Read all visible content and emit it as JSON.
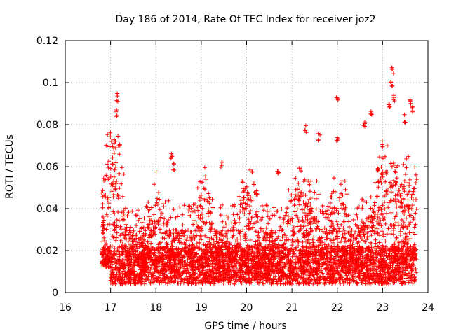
{
  "chart_data": {
    "type": "scatter",
    "title": "Day 186 of 2014, Rate Of TEC Index for receiver joz2",
    "xlabel": "GPS time / hours",
    "ylabel": "ROTI / TECUs",
    "xlim": [
      16,
      24
    ],
    "ylim": [
      0,
      0.12
    ],
    "x_ticks": [
      "16",
      "17",
      "18",
      "19",
      "20",
      "21",
      "22",
      "23",
      "24"
    ],
    "y_ticks": [
      "0",
      "0.02",
      "0.04",
      "0.06",
      "0.08",
      "0.1",
      "0.12"
    ],
    "grid": true,
    "marker": "+",
    "series_color": "#ff0000",
    "data_x_range": [
      16.8,
      23.75
    ],
    "outliers": [
      {
        "x": 17.15,
        "y": 0.095
      },
      {
        "x": 17.14,
        "y": 0.087
      },
      {
        "x": 17.1,
        "y": 0.073
      },
      {
        "x": 17.08,
        "y": 0.069
      },
      {
        "x": 22.0,
        "y": 0.095
      },
      {
        "x": 22.0,
        "y": 0.075
      },
      {
        "x": 21.3,
        "y": 0.08
      },
      {
        "x": 21.6,
        "y": 0.076
      },
      {
        "x": 22.6,
        "y": 0.082
      },
      {
        "x": 22.75,
        "y": 0.087
      },
      {
        "x": 23.0,
        "y": 0.073
      },
      {
        "x": 23.15,
        "y": 0.09
      },
      {
        "x": 23.2,
        "y": 0.102
      },
      {
        "x": 23.22,
        "y": 0.108
      },
      {
        "x": 23.25,
        "y": 0.094
      },
      {
        "x": 23.5,
        "y": 0.085
      },
      {
        "x": 23.6,
        "y": 0.092
      },
      {
        "x": 23.65,
        "y": 0.089
      },
      {
        "x": 18.35,
        "y": 0.067
      },
      {
        "x": 18.4,
        "y": 0.062
      },
      {
        "x": 20.7,
        "y": 0.06
      },
      {
        "x": 19.45,
        "y": 0.063
      }
    ]
  }
}
